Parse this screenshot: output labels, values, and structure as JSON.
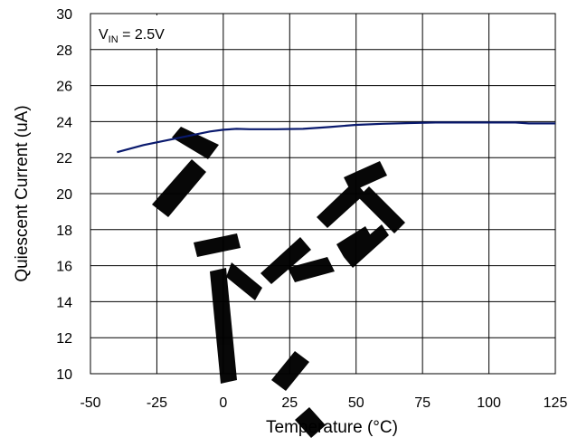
{
  "chart_data": {
    "type": "line",
    "xlabel": "Temperature (°C)",
    "ylabel": "Quiescent Current (uA)",
    "xlim": [
      -50,
      125
    ],
    "ylim": [
      10,
      30
    ],
    "x_ticks": [
      -50,
      -25,
      0,
      25,
      50,
      75,
      100,
      125
    ],
    "y_ticks": [
      10,
      12,
      14,
      16,
      18,
      20,
      22,
      24,
      26,
      28,
      30
    ],
    "grid": true,
    "annotation": {
      "prefix": "V",
      "subscript": "IN",
      "text": " = 2.5V"
    },
    "series": [
      {
        "color": "#0a1a6e",
        "x": [
          -40,
          -30,
          -20,
          -10,
          -5,
          0,
          5,
          10,
          20,
          30,
          35,
          40,
          50,
          60,
          70,
          80,
          90,
          100,
          110,
          115,
          125
        ],
        "y": [
          22.3,
          22.7,
          23.0,
          23.3,
          23.45,
          23.55,
          23.6,
          23.58,
          23.58,
          23.6,
          23.65,
          23.7,
          23.82,
          23.88,
          23.92,
          23.95,
          23.95,
          23.95,
          23.95,
          23.9,
          23.9
        ]
      }
    ]
  }
}
